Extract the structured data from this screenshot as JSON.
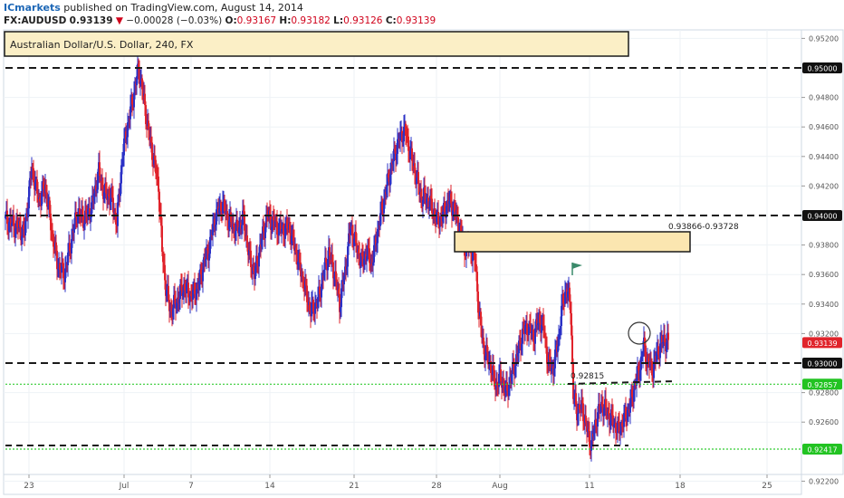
{
  "header": {
    "brand": "ICmarkets",
    "published_text": "published on TradingView.com, August 14, 2014",
    "symbol": "FX:AUDUSD",
    "last": "0.93139",
    "change_arrow": "▼",
    "change": "−0.00028 (−0.03%)",
    "open_label": "O:",
    "open": "0.93167",
    "high_label": "H:",
    "high": "0.93182",
    "low_label": "L:",
    "low": "0.93126",
    "close_label": "C:",
    "close": "0.93139"
  },
  "chart_data": {
    "type": "candlestick",
    "title": "Australian Dollar/U.S. Dollar, 240, FX",
    "ylim": [
      0.921,
      0.953
    ],
    "x_tick_labels": [
      "23",
      "Jul",
      "7",
      "14",
      "21",
      "28",
      "Aug",
      "11",
      "18",
      "25"
    ],
    "y_tick_labels": [
      "0.95200",
      "0.94800",
      "0.94600",
      "0.94400",
      "0.94200",
      "0.93800",
      "0.93600",
      "0.93400",
      "0.93200",
      "0.92800",
      "0.92600",
      "0.92200"
    ],
    "y_tick_values": [
      0.952,
      0.948,
      0.946,
      0.944,
      0.942,
      0.938,
      0.936,
      0.934,
      0.932,
      0.928,
      0.926,
      0.922
    ],
    "grid": true,
    "up_color": "#2b31c6",
    "down_color": "#e0232b",
    "horizontal_levels": [
      {
        "value": 0.95,
        "label": "0.95000",
        "style": "black-dashed"
      },
      {
        "value": 0.94,
        "label": "0.94000",
        "style": "black-dashed"
      },
      {
        "value": 0.93,
        "label": "0.93000",
        "style": "black-dashed"
      },
      {
        "value": 0.92857,
        "label": "0.92857",
        "style": "green-dotted"
      },
      {
        "value": 0.92417,
        "label": "0.92417",
        "style": "green-dotted"
      }
    ],
    "last_price": {
      "value": 0.93139,
      "label": "0.93139"
    },
    "annotations": [
      {
        "text": "0.93866-0.93728",
        "from": 0.93866,
        "to": 0.93728
      },
      {
        "text": "0.92815",
        "value": 0.92815
      }
    ],
    "path_points": [
      [
        0,
        0.9398
      ],
      [
        8,
        0.9394
      ],
      [
        15,
        0.9392
      ],
      [
        22,
        0.9388
      ],
      [
        30,
        0.9432
      ],
      [
        38,
        0.941
      ],
      [
        45,
        0.942
      ],
      [
        52,
        0.939
      ],
      [
        58,
        0.9368
      ],
      [
        66,
        0.936
      ],
      [
        72,
        0.9378
      ],
      [
        80,
        0.9402
      ],
      [
        88,
        0.9398
      ],
      [
        96,
        0.9405
      ],
      [
        104,
        0.943
      ],
      [
        110,
        0.9415
      ],
      [
        118,
        0.9412
      ],
      [
        124,
        0.9395
      ],
      [
        130,
        0.944
      ],
      [
        136,
        0.9462
      ],
      [
        142,
        0.948
      ],
      [
        148,
        0.95
      ],
      [
        153,
        0.9482
      ],
      [
        158,
        0.946
      ],
      [
        164,
        0.944
      ],
      [
        170,
        0.942
      ],
      [
        174,
        0.9376
      ],
      [
        178,
        0.9352
      ],
      [
        183,
        0.9335
      ],
      [
        190,
        0.9342
      ],
      [
        198,
        0.9352
      ],
      [
        206,
        0.9345
      ],
      [
        214,
        0.9352
      ],
      [
        220,
        0.9368
      ],
      [
        226,
        0.9378
      ],
      [
        232,
        0.9398
      ],
      [
        240,
        0.9408
      ],
      [
        248,
        0.9396
      ],
      [
        256,
        0.939
      ],
      [
        264,
        0.9398
      ],
      [
        270,
        0.9372
      ],
      [
        276,
        0.936
      ],
      [
        282,
        0.9378
      ],
      [
        290,
        0.94
      ],
      [
        298,
        0.9394
      ],
      [
        306,
        0.939
      ],
      [
        314,
        0.9392
      ],
      [
        322,
        0.9375
      ],
      [
        330,
        0.9355
      ],
      [
        338,
        0.9335
      ],
      [
        346,
        0.9342
      ],
      [
        352,
        0.936
      ],
      [
        358,
        0.9375
      ],
      [
        364,
        0.9362
      ],
      [
        370,
        0.934
      ],
      [
        376,
        0.9362
      ],
      [
        382,
        0.9392
      ],
      [
        388,
        0.938
      ],
      [
        394,
        0.9368
      ],
      [
        400,
        0.9375
      ],
      [
        406,
        0.9368
      ],
      [
        412,
        0.939
      ],
      [
        418,
        0.9408
      ],
      [
        424,
        0.9425
      ],
      [
        430,
        0.944
      ],
      [
        436,
        0.9452
      ],
      [
        442,
        0.9458
      ],
      [
        448,
        0.9442
      ],
      [
        454,
        0.9428
      ],
      [
        460,
        0.9412
      ],
      [
        466,
        0.9412
      ],
      [
        472,
        0.9405
      ],
      [
        478,
        0.9396
      ],
      [
        484,
        0.94
      ],
      [
        490,
        0.941
      ],
      [
        496,
        0.9405
      ],
      [
        502,
        0.9392
      ],
      [
        508,
        0.9378
      ],
      [
        514,
        0.938
      ],
      [
        520,
        0.9368
      ],
      [
        524,
        0.9332
      ],
      [
        530,
        0.9308
      ],
      [
        536,
        0.93
      ],
      [
        542,
        0.9285
      ],
      [
        548,
        0.929
      ],
      [
        554,
        0.928
      ],
      [
        560,
        0.9292
      ],
      [
        566,
        0.9305
      ],
      [
        572,
        0.932
      ],
      [
        578,
        0.9325
      ],
      [
        584,
        0.9318
      ],
      [
        590,
        0.933
      ],
      [
        596,
        0.9322
      ],
      [
        600,
        0.93
      ],
      [
        606,
        0.9296
      ],
      [
        612,
        0.9318
      ],
      [
        616,
        0.934
      ],
      [
        620,
        0.935
      ],
      [
        625,
        0.934
      ],
      [
        628,
        0.9278
      ],
      [
        632,
        0.9268
      ],
      [
        638,
        0.927
      ],
      [
        644,
        0.9252
      ],
      [
        648,
        0.9245
      ],
      [
        654,
        0.9264
      ],
      [
        660,
        0.9272
      ],
      [
        666,
        0.9266
      ],
      [
        672,
        0.926
      ],
      [
        678,
        0.9254
      ],
      [
        684,
        0.9262
      ],
      [
        690,
        0.927
      ],
      [
        696,
        0.9285
      ],
      [
        702,
        0.9298
      ],
      [
        706,
        0.9312
      ],
      [
        710,
        0.93
      ],
      [
        716,
        0.9296
      ],
      [
        720,
        0.9306
      ],
      [
        724,
        0.9312
      ],
      [
        728,
        0.9316
      ],
      [
        732,
        0.9314
      ]
    ]
  },
  "series": {
    "up_color": "#2b31c6",
    "down_color": "#e0232b"
  }
}
